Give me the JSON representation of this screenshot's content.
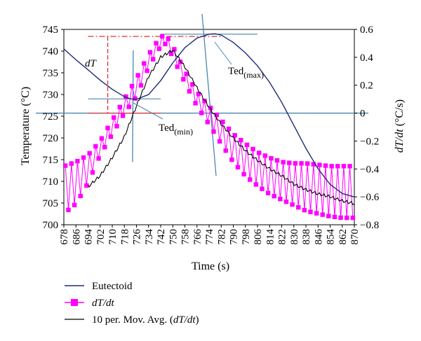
{
  "chart_data": {
    "type": "line",
    "xlabel": "Time (s)",
    "ylabel_left": "Temperature (°C)",
    "ylabel_right_main": "dT/dt",
    "ylabel_right_unit": " (°C/s)",
    "xlim": [
      678,
      870
    ],
    "x_ticks": [
      "678",
      "686",
      "694",
      "702",
      "710",
      "718",
      "726",
      "734",
      "742",
      "750",
      "758",
      "766",
      "774",
      "782",
      "790",
      "798",
      "806",
      "814",
      "822",
      "830",
      "838",
      "846",
      "854",
      "862",
      "870"
    ],
    "ylim_left": [
      700,
      745
    ],
    "y_ticks_left": [
      "700",
      "705",
      "710",
      "715",
      "720",
      "725",
      "730",
      "735",
      "740",
      "745"
    ],
    "ylim_right": [
      -0.8,
      0.6
    ],
    "y_ticks_right": [
      "−0.8",
      "−0.6",
      "−0.4",
      "−0.2",
      "0",
      "0.2",
      "0.4",
      "0.6"
    ],
    "grid": false,
    "legend_position": "bottom-left",
    "legend": {
      "eutectoid": "Eutectoid",
      "dtdt_italic": "dT/dt",
      "mavg_prefix": "10 per. Mov. Avg. (",
      "mavg_italic": "dT/dt",
      "mavg_suffix": ")"
    },
    "annotations": {
      "dT": "dT",
      "ted_max_base": "Ted",
      "ted_max_sub": "(max)",
      "ted_min_base": "Ted",
      "ted_min_sub": "(min)"
    },
    "colors": {
      "eutectoid": "#1f2a7a",
      "dtdt": "#ff00ff",
      "mavg": "#000000",
      "reference": "#4a86b0",
      "dT_marker": "#e03030"
    },
    "series": [
      {
        "name": "Eutectoid",
        "axis": "left",
        "x": [
          678,
          686,
          694,
          702,
          710,
          718,
          722,
          726,
          734,
          742,
          750,
          758,
          766,
          774,
          778,
          782,
          790,
          798,
          806,
          814,
          822,
          830,
          838,
          846,
          854,
          862,
          870
        ],
        "y": [
          740.5,
          738.0,
          735.7,
          733.3,
          731.2,
          729.5,
          729.0,
          728.9,
          730.0,
          733.2,
          737.3,
          740.8,
          743.0,
          743.9,
          744.0,
          743.7,
          742.0,
          739.6,
          736.6,
          732.8,
          728.2,
          722.9,
          717.6,
          712.9,
          709.3,
          707.2,
          706.4
        ]
      },
      {
        "name": "dT/dt",
        "axis": "right",
        "style": "sawtooth",
        "x": [
          678,
          686,
          694,
          702,
          710,
          718,
          726,
          734,
          742,
          746,
          750,
          758,
          766,
          774,
          782,
          790,
          798,
          806,
          814,
          822,
          830,
          838,
          846,
          854,
          862,
          870
        ],
        "y_upper": [
          -0.38,
          -0.35,
          -0.3,
          -0.2,
          -0.05,
          0.1,
          0.25,
          0.42,
          0.55,
          0.55,
          0.48,
          0.3,
          0.15,
          0.05,
          -0.05,
          -0.15,
          -0.22,
          -0.28,
          -0.32,
          -0.35,
          -0.36,
          -0.36,
          -0.37,
          -0.38,
          -0.38,
          -0.38
        ],
        "y_lower": [
          -0.72,
          -0.65,
          -0.5,
          -0.3,
          -0.15,
          0.0,
          0.12,
          0.33,
          0.48,
          0.5,
          0.4,
          0.22,
          0.05,
          -0.08,
          -0.22,
          -0.35,
          -0.45,
          -0.52,
          -0.58,
          -0.62,
          -0.66,
          -0.7,
          -0.72,
          -0.74,
          -0.75,
          -0.75
        ]
      },
      {
        "name": "10 per. Mov. Avg. (dT/dt)",
        "axis": "right",
        "x": [
          694,
          702,
          710,
          718,
          726,
          734,
          742,
          750,
          758,
          766,
          774,
          782,
          790,
          798,
          806,
          814,
          822,
          830,
          838,
          846,
          854,
          862,
          870
        ],
        "y": [
          -0.53,
          -0.45,
          -0.32,
          -0.17,
          0.05,
          0.26,
          0.4,
          0.45,
          0.33,
          0.18,
          0.04,
          -0.08,
          -0.18,
          -0.27,
          -0.34,
          -0.4,
          -0.45,
          -0.51,
          -0.55,
          -0.58,
          -0.6,
          -0.63,
          -0.65
        ]
      }
    ],
    "reference_lines": {
      "zero_line_right": 0,
      "ted_max_x": 774,
      "ted_min_x": 722,
      "dT_x": 707,
      "dT_top_right": 0.55,
      "dT_bottom_right": 0.0
    }
  }
}
